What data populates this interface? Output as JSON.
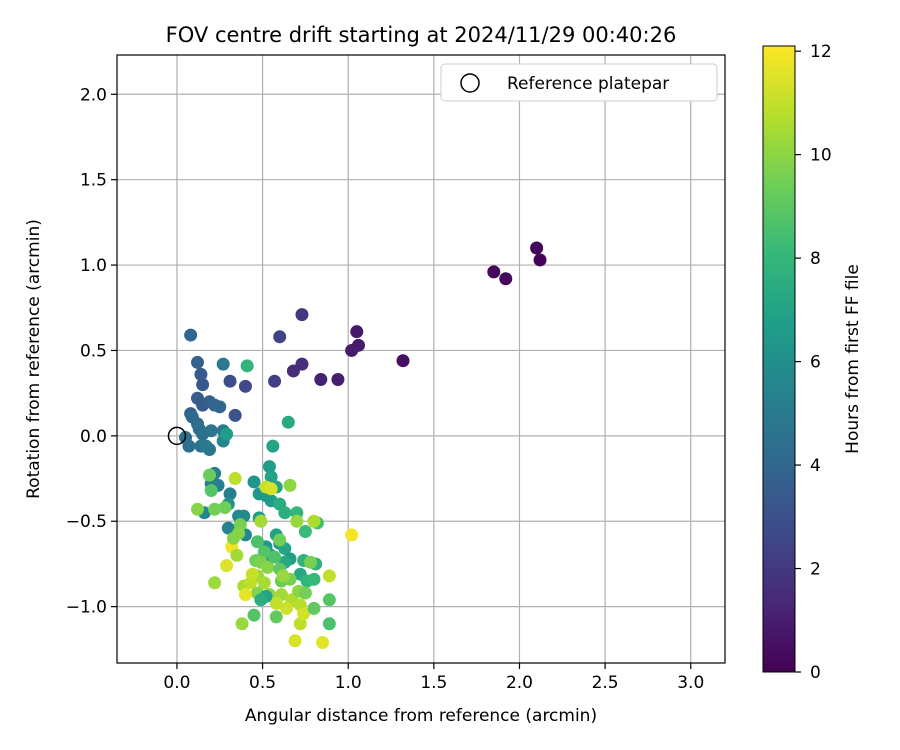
{
  "chart_data": {
    "type": "scatter",
    "title": "FOV centre drift starting at 2024/11/29 00:40:26",
    "xlabel": "Angular distance from reference (arcmin)",
    "ylabel": "Rotation from reference (arcmin)",
    "xlim": [
      -0.35,
      3.2
    ],
    "ylim": [
      -1.33,
      2.23
    ],
    "xticks": [
      0.0,
      0.5,
      1.0,
      1.5,
      2.0,
      2.5,
      3.0
    ],
    "yticks": [
      -1.0,
      -0.5,
      0.0,
      0.5,
      1.0,
      1.5,
      2.0
    ],
    "xtick_labels": [
      "0.0",
      "0.5",
      "1.0",
      "1.5",
      "2.0",
      "2.5",
      "3.0"
    ],
    "ytick_labels": [
      "−1.0",
      "−0.5",
      "0.0",
      "0.5",
      "1.0",
      "1.5",
      "2.0"
    ],
    "grid": true,
    "legend": {
      "position": "top-right",
      "entries": [
        "Reference platepar"
      ]
    },
    "reference_point": {
      "x": 0.0,
      "y": 0.0,
      "label": "Reference platepar"
    },
    "colorbar": {
      "label": "Hours from first FF file",
      "range": [
        0,
        12.1
      ],
      "ticks": [
        0,
        2,
        4,
        6,
        8,
        10,
        12
      ],
      "tick_labels": [
        "0",
        "2",
        "4",
        "6",
        "8",
        "10",
        "12"
      ],
      "colormap": "viridis",
      "colormap_stops": [
        "#440154",
        "#482878",
        "#3e4a89",
        "#31688e",
        "#26828e",
        "#1f9e89",
        "#35b779",
        "#6ece58",
        "#b5de2b",
        "#fde725"
      ]
    },
    "series": [
      {
        "points": [
          [
            2.1,
            1.1,
            0.1
          ],
          [
            2.12,
            1.03,
            0.1
          ],
          [
            1.85,
            0.96,
            0.2
          ],
          [
            1.92,
            0.92,
            0.2
          ],
          [
            1.32,
            0.44,
            0.5
          ],
          [
            1.05,
            0.61,
            0.8
          ],
          [
            1.06,
            0.53,
            0.9
          ],
          [
            1.02,
            0.5,
            0.9
          ],
          [
            0.94,
            0.33,
            1.0
          ],
          [
            0.84,
            0.33,
            1.1
          ],
          [
            0.73,
            0.71,
            1.9
          ],
          [
            0.73,
            0.42,
            1.6
          ],
          [
            0.68,
            0.38,
            1.5
          ],
          [
            0.6,
            0.58,
            2.4
          ],
          [
            0.57,
            0.32,
            2.3
          ],
          [
            0.4,
            0.29,
            2.6
          ],
          [
            0.31,
            0.32,
            2.9
          ],
          [
            0.34,
            0.12,
            3.2
          ],
          [
            0.08,
            0.59,
            3.9
          ],
          [
            0.12,
            0.43,
            3.7
          ],
          [
            0.14,
            0.36,
            3.4
          ],
          [
            0.15,
            0.3,
            3.3
          ],
          [
            0.12,
            0.22,
            3.6
          ],
          [
            0.15,
            0.18,
            3.5
          ],
          [
            0.19,
            0.2,
            3.8
          ],
          [
            0.22,
            0.18,
            3.9
          ],
          [
            0.25,
            0.17,
            4.0
          ],
          [
            0.27,
            0.42,
            4.9
          ],
          [
            0.08,
            0.13,
            3.8
          ],
          [
            0.09,
            0.11,
            4.1
          ],
          [
            0.12,
            0.07,
            4.2
          ],
          [
            0.13,
            0.04,
            4.4
          ],
          [
            0.15,
            0.01,
            4.5
          ],
          [
            0.2,
            0.03,
            4.6
          ],
          [
            0.27,
            0.03,
            4.8
          ],
          [
            0.27,
            -0.03,
            5.5
          ],
          [
            0.05,
            -0.01,
            4.3
          ],
          [
            0.07,
            -0.06,
            4.4
          ],
          [
            0.14,
            -0.06,
            4.6
          ],
          [
            0.19,
            -0.08,
            4.7
          ],
          [
            0.17,
            -0.06,
            4.9
          ],
          [
            0.29,
            0.01,
            6.7
          ],
          [
            0.65,
            0.08,
            7.3
          ],
          [
            0.56,
            -0.06,
            7.0
          ],
          [
            0.41,
            0.41,
            7.9
          ],
          [
            0.2,
            -0.28,
            5.0
          ],
          [
            0.24,
            -0.29,
            5.1
          ],
          [
            0.22,
            -0.22,
            5.3
          ],
          [
            0.31,
            -0.34,
            5.2
          ],
          [
            0.3,
            -0.4,
            6.2
          ],
          [
            0.36,
            -0.47,
            5.6
          ],
          [
            0.39,
            -0.47,
            5.8
          ],
          [
            0.16,
            -0.45,
            5.7
          ],
          [
            0.3,
            -0.54,
            5.4
          ],
          [
            0.36,
            -0.55,
            5.5
          ],
          [
            0.4,
            -0.58,
            5.7
          ],
          [
            0.45,
            -0.27,
            6.3
          ],
          [
            0.48,
            -0.34,
            6.4
          ],
          [
            0.52,
            -0.35,
            6.5
          ],
          [
            0.55,
            -0.38,
            6.6
          ],
          [
            0.54,
            -0.18,
            6.8
          ],
          [
            0.55,
            -0.24,
            7.0
          ],
          [
            0.58,
            -0.3,
            7.1
          ],
          [
            0.6,
            -0.4,
            7.4
          ],
          [
            0.63,
            -0.45,
            7.6
          ],
          [
            0.7,
            -0.45,
            8.0
          ],
          [
            0.75,
            -0.56,
            8.2
          ],
          [
            0.82,
            -0.51,
            8.4
          ],
          [
            0.66,
            -0.29,
            10.0
          ],
          [
            0.7,
            -0.5,
            10.2
          ],
          [
            0.8,
            -0.5,
            10.6
          ],
          [
            0.58,
            -0.58,
            6.9
          ],
          [
            0.6,
            -0.63,
            6.5
          ],
          [
            0.63,
            -0.66,
            7.1
          ],
          [
            0.66,
            -0.72,
            6.8
          ],
          [
            0.52,
            -0.65,
            6.4
          ],
          [
            0.55,
            -0.7,
            6.6
          ],
          [
            0.63,
            -0.74,
            7.2
          ],
          [
            0.74,
            -0.73,
            7.8
          ],
          [
            0.72,
            -0.81,
            7.3
          ],
          [
            0.76,
            -0.85,
            7.9
          ],
          [
            0.8,
            -0.84,
            8.1
          ],
          [
            0.81,
            -0.75,
            7.7
          ],
          [
            0.48,
            -0.48,
            6.8
          ],
          [
            0.47,
            -0.62,
            8.6
          ],
          [
            0.51,
            -0.68,
            8.8
          ],
          [
            0.46,
            -0.73,
            9.4
          ],
          [
            0.49,
            -0.74,
            9.7
          ],
          [
            0.53,
            -0.77,
            9.9
          ],
          [
            0.57,
            -0.71,
            8.7
          ],
          [
            0.6,
            -0.78,
            9.0
          ],
          [
            0.61,
            -0.85,
            9.3
          ],
          [
            0.66,
            -0.84,
            9.6
          ],
          [
            0.47,
            -0.82,
            10.3
          ],
          [
            0.51,
            -0.86,
            10.5
          ],
          [
            0.47,
            -0.92,
            9.8
          ],
          [
            0.54,
            -0.93,
            10.1
          ],
          [
            0.61,
            -0.93,
            10.4
          ],
          [
            0.67,
            -0.96,
            10.7
          ],
          [
            0.71,
            -0.91,
            10.0
          ],
          [
            0.75,
            -0.92,
            9.5
          ],
          [
            0.72,
            -0.99,
            10.8
          ],
          [
            0.64,
            -1.01,
            11.2
          ],
          [
            0.58,
            -0.98,
            11.0
          ],
          [
            0.52,
            -0.94,
            7.0
          ],
          [
            0.49,
            -0.96,
            7.5
          ],
          [
            0.45,
            -1.05,
            8.8
          ],
          [
            0.58,
            -1.06,
            9.2
          ],
          [
            0.72,
            -1.1,
            10.9
          ],
          [
            0.74,
            -1.04,
            11.3
          ],
          [
            0.8,
            -1.01,
            9.1
          ],
          [
            0.89,
            -0.96,
            8.9
          ],
          [
            0.89,
            -1.1,
            8.6
          ],
          [
            0.69,
            -1.2,
            11.4
          ],
          [
            0.85,
            -1.21,
            11.6
          ],
          [
            0.38,
            -1.1,
            10.2
          ],
          [
            0.39,
            -0.88,
            10.6
          ],
          [
            0.4,
            -0.93,
            11.7
          ],
          [
            0.43,
            -0.86,
            10.9
          ],
          [
            0.44,
            -0.81,
            11.1
          ],
          [
            0.22,
            -0.86,
            10.3
          ],
          [
            0.29,
            -0.76,
            11.5
          ],
          [
            0.32,
            -0.65,
            11.8
          ],
          [
            0.35,
            -0.7,
            10.4
          ],
          [
            0.33,
            -0.6,
            9.8
          ],
          [
            0.37,
            -0.52,
            9.6
          ],
          [
            0.36,
            -0.57,
            9.9
          ],
          [
            0.28,
            -0.42,
            9.4
          ],
          [
            0.22,
            -0.43,
            9.5
          ],
          [
            0.12,
            -0.43,
            9.9
          ],
          [
            0.19,
            -0.23,
            9.3
          ],
          [
            0.2,
            -0.32,
            8.8
          ],
          [
            0.34,
            -0.25,
            10.9
          ],
          [
            0.52,
            -0.3,
            11.1
          ],
          [
            0.55,
            -0.31,
            11.4
          ],
          [
            0.49,
            -0.5,
            10.4
          ],
          [
            0.6,
            -0.61,
            9.4
          ],
          [
            0.62,
            -0.82,
            10.2
          ],
          [
            0.78,
            -0.74,
            9.6
          ],
          [
            0.89,
            -0.82,
            11.0
          ],
          [
            1.02,
            -0.58,
            11.9
          ]
        ]
      }
    ]
  }
}
